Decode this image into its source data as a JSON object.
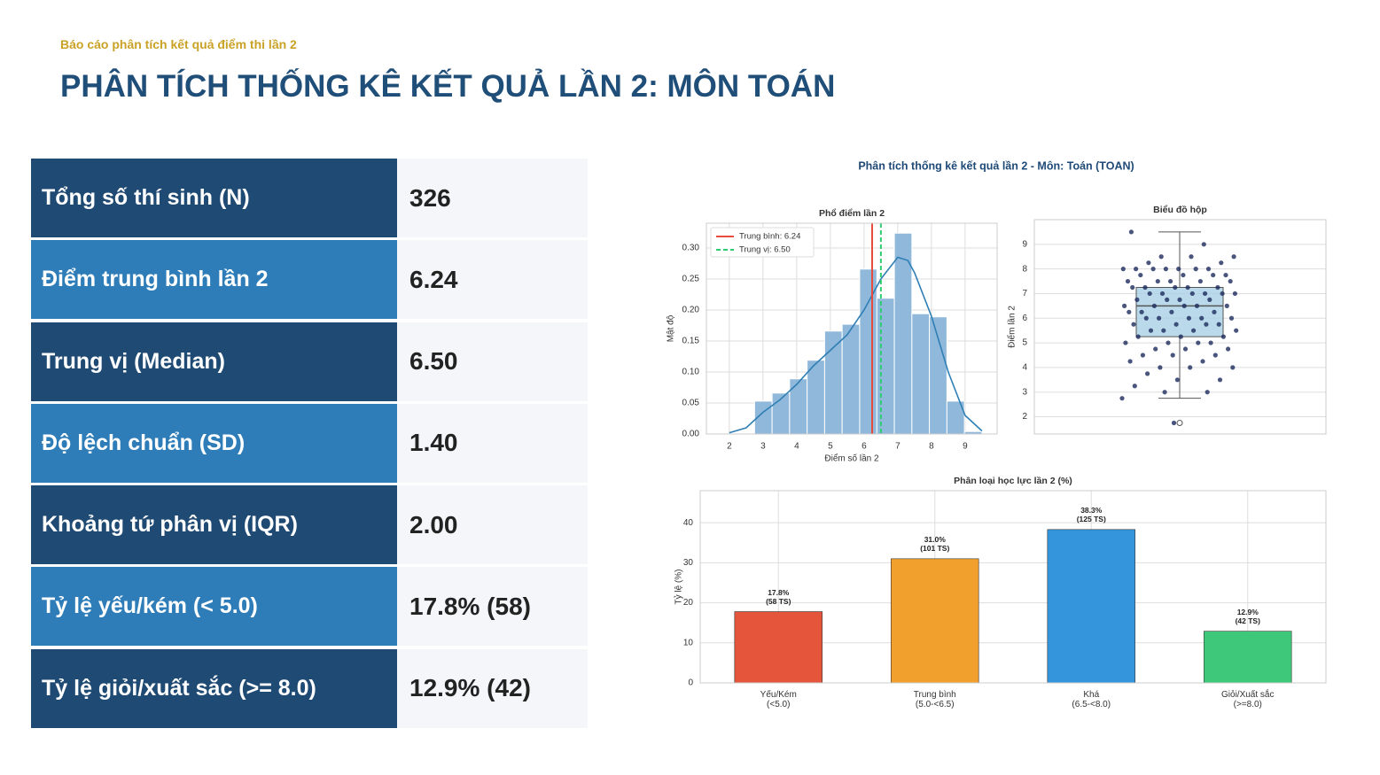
{
  "header": {
    "kicker": "Báo cáo phân tích kết quả điểm thi lần 2",
    "title": "PHÂN TÍCH THỐNG KÊ KẾT QUẢ LẦN 2: MÔN TOÁN"
  },
  "table": {
    "rows": [
      [
        "Tổng số thí sinh (N)",
        "326"
      ],
      [
        "Điểm trung bình lần 2",
        "6.24"
      ],
      [
        "Trung vị (Median)",
        "6.50"
      ],
      [
        "Độ lệch chuẩn (SD)",
        "1.40"
      ],
      [
        "Khoảng tứ phân vị (IQR)",
        "2.00"
      ],
      [
        "Tỷ lệ yếu/kém (< 5.0)",
        "17.8% (58)"
      ],
      [
        "Tỷ lệ giỏi/xuất sắc (>= 8.0)",
        "12.9% (42)"
      ]
    ]
  },
  "figure": {
    "title": "Phân tích thống kê kết quả lần 2 - Môn: Toán (TOAN)"
  },
  "chart_data": [
    {
      "type": "histogram",
      "title": "Phổ điểm lần 2",
      "xlabel": "Điểm số lần 2",
      "ylabel": "Mật độ",
      "color": "#8fb8da",
      "bins": [
        2.75,
        3.27,
        3.79,
        4.31,
        4.83,
        5.35,
        5.87,
        6.38,
        6.9,
        7.42,
        7.94,
        8.46,
        8.98,
        9.5
      ],
      "values": [
        0.053,
        0.066,
        0.089,
        0.119,
        0.166,
        0.177,
        0.266,
        0.219,
        0.324,
        0.194,
        0.189,
        0.053,
        0.004
      ],
      "kde": {
        "color": "#2f7fb5",
        "x": [
          2,
          2.5,
          3,
          3.5,
          4,
          4.5,
          5,
          5.5,
          6,
          6.5,
          7,
          7.3,
          7.5,
          8,
          8.5,
          9,
          9.5
        ],
        "y": [
          0.002,
          0.01,
          0.035,
          0.055,
          0.08,
          0.11,
          0.135,
          0.16,
          0.2,
          0.25,
          0.285,
          0.28,
          0.26,
          0.19,
          0.1,
          0.03,
          0.005
        ]
      },
      "lines": [
        {
          "name": "Trung bình: 6.24",
          "value": 6.24,
          "color": "#e74c3c",
          "dashed": false
        },
        {
          "name": "Trung vị: 6.50",
          "value": 6.5,
          "color": "#2ecc71",
          "dashed": true
        }
      ],
      "xlim": [
        1.32,
        9.95
      ],
      "ylim": [
        0,
        0.34
      ],
      "xticks": [
        2,
        3,
        4,
        5,
        6,
        7,
        8,
        9
      ],
      "yticks": [
        {
          "value": 0,
          "label": "0.00"
        },
        {
          "value": 0.05,
          "label": "0.05"
        },
        {
          "value": 0.1,
          "label": "0.10"
        },
        {
          "value": 0.15,
          "label": "0.15"
        },
        {
          "value": 0.2,
          "label": "0.20"
        },
        {
          "value": 0.25,
          "label": "0.25"
        },
        {
          "value": 0.3,
          "label": "0.30"
        }
      ],
      "grid": true,
      "legend": "upper left"
    },
    {
      "type": "box",
      "title": "Biểu đồ hộp",
      "ylabel": "Điểm lần 2",
      "ylim": [
        1.3,
        10
      ],
      "yticks": [
        2,
        3,
        4,
        5,
        6,
        7,
        8,
        9
      ],
      "grid": true,
      "color": "#a9d1e6",
      "point_color": "#1b2a5c",
      "box": {
        "whislo": 2.75,
        "q1": 5.25,
        "median": 6.5,
        "q3": 7.25,
        "whishi": 9.5,
        "fliers": [
          1.75
        ]
      },
      "points": [
        2.75,
        3,
        3,
        3.25,
        3.5,
        3.5,
        3.75,
        4,
        4,
        4,
        4.25,
        4.25,
        4.5,
        4.5,
        4.5,
        4.75,
        4.75,
        4.75,
        5,
        5,
        5,
        5,
        5.25,
        5.25,
        5.25,
        5.5,
        5.5,
        5.5,
        5.5,
        5.75,
        5.75,
        5.75,
        5.75,
        6,
        6,
        6,
        6,
        6,
        6.25,
        6.25,
        6.25,
        6.25,
        6.5,
        6.5,
        6.5,
        6.5,
        6.5,
        6.75,
        6.75,
        6.75,
        6.75,
        7,
        7,
        7,
        7,
        7,
        7,
        7.25,
        7.25,
        7.25,
        7.25,
        7.25,
        7.5,
        7.5,
        7.5,
        7.5,
        7.5,
        7.75,
        7.75,
        7.75,
        7.75,
        8,
        8,
        8,
        8,
        8,
        8,
        8,
        8.25,
        8.25,
        8.5,
        8.5,
        8.5,
        9,
        9.5,
        1.75
      ]
    },
    {
      "type": "bar",
      "title": "Phân loại học lực lần 2 (%)",
      "ylabel": "Tỷ lệ (%)",
      "categories": [
        "Yếu/Kém\n(<5.0)",
        "Trung bình\n(5.0-<6.5)",
        "Khá\n(6.5-<8.0)",
        "Giỏi/Xuất sắc\n(>=8.0)"
      ],
      "values": [
        17.8,
        31.0,
        38.3,
        12.9
      ],
      "value_labels": [
        "17.8%\n(58 TS)",
        "31.0%\n(101 TS)",
        "38.3%\n(125 TS)",
        "12.9%\n(42 TS)"
      ],
      "colors": [
        "#e4553b",
        "#f2a02d",
        "#3595dc",
        "#3ec97a"
      ],
      "ylim": [
        0,
        48
      ],
      "yticks": [
        0,
        10,
        20,
        30,
        40
      ],
      "grid": true
    }
  ]
}
